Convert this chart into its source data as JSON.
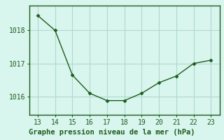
{
  "x": [
    13,
    14,
    15,
    16,
    17,
    18,
    19,
    20,
    21,
    22,
    23
  ],
  "y": [
    1018.45,
    1018.0,
    1016.65,
    1016.1,
    1015.88,
    1015.88,
    1016.1,
    1016.42,
    1016.62,
    1017.0,
    1017.1
  ],
  "xlabel": "Graphe pression niveau de la mer (hPa)",
  "xlim": [
    12.5,
    23.5
  ],
  "ylim": [
    1015.45,
    1018.75
  ],
  "yticks": [
    1016,
    1017,
    1018
  ],
  "xticks": [
    13,
    14,
    15,
    16,
    17,
    18,
    19,
    20,
    21,
    22,
    23
  ],
  "line_color": "#1e5c1e",
  "marker_color": "#1e5c1e",
  "bg_color": "#d8f5ee",
  "grid_color": "#b0d9cc",
  "border_color": "#1e5c1e",
  "xlabel_color": "#1e5c1e",
  "tick_color": "#1e5c1e",
  "xlabel_fontsize": 7.5,
  "tick_fontsize": 7
}
